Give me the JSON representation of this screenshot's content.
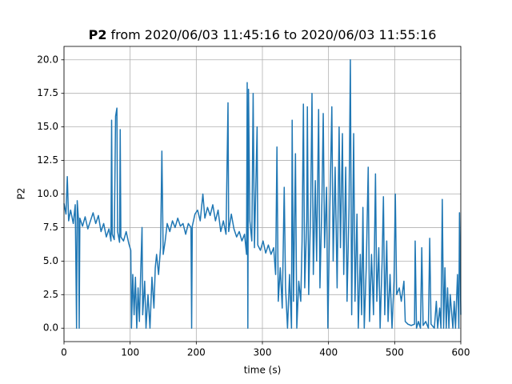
{
  "chart_data": {
    "type": "line",
    "title_bold": "P2",
    "title": "from 2020/06/03 11:45:16 to 2020/06/03 11:55:16",
    "xlabel": "time (s)",
    "ylabel": "P2",
    "xlim": [
      0,
      600
    ],
    "ylim": [
      -1,
      21
    ],
    "xticks": [
      0,
      100,
      200,
      300,
      400,
      500,
      600
    ],
    "yticks": [
      {
        "value": 0,
        "label": "0.0"
      },
      2.5,
      {
        "value": 5,
        "label": "5.0"
      },
      7.5,
      {
        "value": 10,
        "label": "10.0"
      },
      12.5,
      {
        "value": 15,
        "label": "15.0"
      },
      17.5,
      {
        "value": 20,
        "label": "20.0"
      }
    ],
    "grid": true,
    "series": [
      {
        "color": "#1f77b4",
        "x": [
          0,
          3,
          5,
          7,
          10,
          14,
          17,
          19,
          20,
          22,
          23,
          24,
          28,
          32,
          36,
          40,
          44,
          48,
          52,
          56,
          60,
          64,
          68,
          71,
          72,
          73,
          76,
          78,
          80,
          81,
          84,
          85,
          86,
          90,
          94,
          98,
          101,
          102,
          104,
          106,
          108,
          110,
          112,
          114,
          116,
          118,
          119,
          122,
          124,
          127,
          130,
          133,
          136,
          138,
          140,
          143,
          146,
          148,
          150,
          153,
          156,
          160,
          164,
          168,
          172,
          176,
          180,
          184,
          188,
          192,
          193,
          194,
          198,
          202,
          206,
          210,
          213,
          217,
          221,
          225,
          229,
          233,
          237,
          241,
          245,
          248,
          249,
          253,
          257,
          261,
          265,
          269,
          273,
          276,
          277,
          278,
          279,
          281,
          284,
          286,
          288,
          292,
          293,
          297,
          301,
          305,
          309,
          313,
          317,
          320,
          322,
          324,
          327,
          330,
          333,
          335,
          338,
          341,
          344,
          345,
          347,
          350,
          352,
          355,
          358,
          360,
          362,
          364,
          367,
          368,
          370,
          373,
          375,
          377,
          380,
          382,
          385,
          387,
          390,
          392,
          394,
          397,
          399,
          402,
          405,
          407,
          410,
          413,
          416,
          418,
          421,
          423,
          426,
          428,
          431,
          433,
          435,
          438,
          440,
          443,
          445,
          448,
          450,
          452,
          454,
          457,
          460,
          462,
          465,
          468,
          471,
          473,
          476,
          478,
          481,
          483,
          485,
          488,
          490,
          493,
          496,
          499,
          501,
          503,
          507,
          510,
          514,
          516,
          520,
          525,
          530,
          531,
          533,
          536,
          539,
          541,
          543,
          547,
          551,
          553,
          555,
          560,
          563,
          565,
          568,
          570,
          572,
          574,
          576,
          578,
          580,
          582,
          584,
          588,
          590,
          592,
          595,
          597,
          598,
          600
        ],
        "values": [
          9.3,
          8.5,
          11.3,
          8.0,
          8.8,
          7.8,
          9.2,
          0,
          9.5,
          8.0,
          0,
          8.2,
          7.6,
          8.3,
          7.4,
          8.0,
          8.6,
          7.8,
          8.4,
          7.2,
          7.8,
          6.8,
          7.4,
          6.5,
          15.5,
          7.0,
          6.6,
          15.8,
          16.4,
          7.2,
          6.4,
          14.8,
          6.8,
          6.5,
          7.2,
          6.3,
          5.8,
          0,
          4.0,
          1.0,
          3.8,
          0,
          3.0,
          0.5,
          4.2,
          7.5,
          1.0,
          3.5,
          0,
          2.5,
          0,
          3.8,
          1.5,
          4.5,
          5.5,
          4.0,
          6.0,
          13.2,
          5.5,
          6.5,
          7.8,
          7.2,
          8.0,
          7.5,
          8.2,
          7.6,
          7.8,
          7.0,
          7.8,
          7.5,
          0,
          7.6,
          8.5,
          8.8,
          8.0,
          10.0,
          8.2,
          9.0,
          8.4,
          9.2,
          8.0,
          8.8,
          7.2,
          8.0,
          7.0,
          16.8,
          7.2,
          8.5,
          7.4,
          6.8,
          7.2,
          6.5,
          7.0,
          5.5,
          18.3,
          0,
          17.8,
          8.0,
          6.5,
          17.5,
          6.0,
          15.0,
          6.2,
          5.8,
          6.5,
          5.6,
          6.2,
          5.5,
          6.0,
          4.0,
          13.5,
          2.0,
          4.5,
          1.5,
          10.5,
          3.0,
          0,
          4.0,
          0,
          15.5,
          2.0,
          13.0,
          0,
          3.5,
          2.0,
          6.5,
          16.7,
          3.0,
          8.0,
          16.5,
          2.5,
          9.0,
          17.5,
          4.0,
          11.0,
          5.0,
          16.3,
          3.0,
          9.5,
          16.0,
          6.0,
          10.5,
          0,
          9.0,
          16.5,
          5.0,
          12.0,
          3.0,
          15.0,
          6.0,
          14.5,
          4.0,
          12.0,
          2.0,
          9.0,
          20.0,
          1.0,
          14.5,
          2.0,
          8.5,
          0,
          5.5,
          1.0,
          9.0,
          0,
          4.5,
          12.0,
          0.5,
          5.5,
          1.0,
          11.5,
          2.0,
          6.0,
          0,
          5.0,
          9.8,
          1.0,
          6.5,
          0.5,
          4.0,
          0,
          3.5,
          10.0,
          2.5,
          3.0,
          2.0,
          3.5,
          0.5,
          0.3,
          0.2,
          0.3,
          6.5,
          0,
          0.5,
          0,
          6.0,
          0.2,
          0.5,
          0,
          6.7,
          0.3,
          0,
          2.0,
          0,
          1.5,
          0,
          9.6,
          0,
          4.5,
          0,
          3.0,
          0,
          2.5,
          0,
          2.0,
          0,
          4.0,
          0,
          8.6,
          1.0
        ]
      }
    ]
  }
}
